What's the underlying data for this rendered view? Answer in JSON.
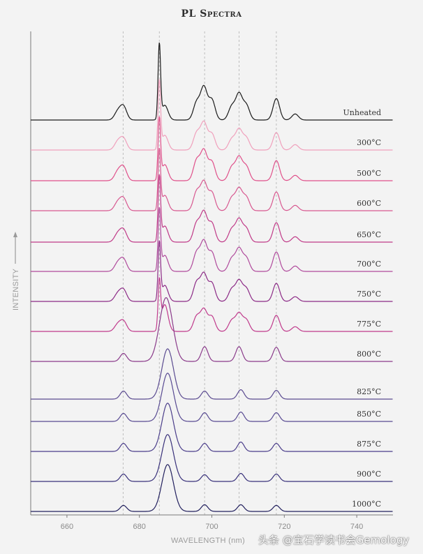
{
  "chart_data": {
    "type": "line",
    "title": "PL Spectra",
    "xlabel": "WAVELENGTH (nm)",
    "ylabel": "INTENSITY",
    "xlim": [
      650,
      750
    ],
    "xticks": [
      660,
      680,
      700,
      720,
      740
    ],
    "grid": "vertical dashed",
    "reference_lines": [
      675.5,
      685.5,
      698,
      707.5,
      717.8
    ],
    "series": [
      {
        "name": "Unheated",
        "color": "#1a1a1a",
        "peaks": [
          {
            "x": 674,
            "y": 12
          },
          {
            "x": 675.6,
            "y": 20
          },
          {
            "x": 685.5,
            "y": 110
          },
          {
            "x": 687,
            "y": 22
          },
          {
            "x": 695.8,
            "y": 26
          },
          {
            "x": 697.8,
            "y": 48
          },
          {
            "x": 700,
            "y": 30
          },
          {
            "x": 705.5,
            "y": 20
          },
          {
            "x": 707.5,
            "y": 38
          },
          {
            "x": 709.5,
            "y": 22
          },
          {
            "x": 717.8,
            "y": 32
          },
          {
            "x": 723,
            "y": 9
          }
        ]
      },
      {
        "name": "300°C",
        "color": "#f0a0bc",
        "peaks": [
          {
            "x": 674,
            "y": 12
          },
          {
            "x": 675.6,
            "y": 17
          },
          {
            "x": 685.5,
            "y": 100
          },
          {
            "x": 687,
            "y": 22
          },
          {
            "x": 695.8,
            "y": 25
          },
          {
            "x": 697.8,
            "y": 40
          },
          {
            "x": 700,
            "y": 24
          },
          {
            "x": 705.5,
            "y": 16
          },
          {
            "x": 707.5,
            "y": 30
          },
          {
            "x": 709.5,
            "y": 18
          },
          {
            "x": 717.8,
            "y": 26
          },
          {
            "x": 723,
            "y": 8
          }
        ]
      },
      {
        "name": "500°C",
        "color": "#e0508a",
        "peaks": [
          {
            "x": 674,
            "y": 13
          },
          {
            "x": 675.6,
            "y": 20
          },
          {
            "x": 685.5,
            "y": 90
          },
          {
            "x": 687,
            "y": 24
          },
          {
            "x": 695.8,
            "y": 30
          },
          {
            "x": 697.8,
            "y": 44
          },
          {
            "x": 700,
            "y": 28
          },
          {
            "x": 705.5,
            "y": 20
          },
          {
            "x": 707.5,
            "y": 34
          },
          {
            "x": 709.5,
            "y": 21
          },
          {
            "x": 717.8,
            "y": 30
          },
          {
            "x": 723,
            "y": 8
          }
        ]
      },
      {
        "name": "600°C",
        "color": "#d85890",
        "peaks": [
          {
            "x": 674,
            "y": 12
          },
          {
            "x": 675.6,
            "y": 18
          },
          {
            "x": 685.5,
            "y": 88
          },
          {
            "x": 687,
            "y": 23
          },
          {
            "x": 695.8,
            "y": 28
          },
          {
            "x": 697.8,
            "y": 42
          },
          {
            "x": 700,
            "y": 27
          },
          {
            "x": 705.5,
            "y": 19
          },
          {
            "x": 707.5,
            "y": 32
          },
          {
            "x": 709.5,
            "y": 20
          },
          {
            "x": 717.8,
            "y": 28
          },
          {
            "x": 723,
            "y": 8
          }
        ]
      },
      {
        "name": "650°C",
        "color": "#c03a88",
        "peaks": [
          {
            "x": 674,
            "y": 12
          },
          {
            "x": 675.6,
            "y": 18
          },
          {
            "x": 685.5,
            "y": 95
          },
          {
            "x": 687,
            "y": 24
          },
          {
            "x": 695.8,
            "y": 28
          },
          {
            "x": 697.8,
            "y": 44
          },
          {
            "x": 700,
            "y": 28
          },
          {
            "x": 705.5,
            "y": 19
          },
          {
            "x": 707.5,
            "y": 33
          },
          {
            "x": 709.5,
            "y": 20
          },
          {
            "x": 717.8,
            "y": 29
          },
          {
            "x": 723,
            "y": 8
          }
        ]
      },
      {
        "name": "700°C",
        "color": "#b04a9c",
        "peaks": [
          {
            "x": 674,
            "y": 12
          },
          {
            "x": 675.6,
            "y": 18
          },
          {
            "x": 685.5,
            "y": 90
          },
          {
            "x": 687,
            "y": 24
          },
          {
            "x": 695.8,
            "y": 28
          },
          {
            "x": 697.8,
            "y": 44
          },
          {
            "x": 700,
            "y": 28
          },
          {
            "x": 705.5,
            "y": 19
          },
          {
            "x": 707.5,
            "y": 33
          },
          {
            "x": 709.5,
            "y": 20
          },
          {
            "x": 717.8,
            "y": 29
          },
          {
            "x": 723,
            "y": 8
          }
        ]
      },
      {
        "name": "750°C",
        "color": "#8c2a86",
        "peaks": [
          {
            "x": 674,
            "y": 11
          },
          {
            "x": 675.6,
            "y": 17
          },
          {
            "x": 685.5,
            "y": 85
          },
          {
            "x": 687,
            "y": 24
          },
          {
            "x": 695.8,
            "y": 28
          },
          {
            "x": 697.8,
            "y": 40
          },
          {
            "x": 700,
            "y": 27
          },
          {
            "x": 705.5,
            "y": 18
          },
          {
            "x": 707.5,
            "y": 30
          },
          {
            "x": 709.5,
            "y": 19
          },
          {
            "x": 717.8,
            "y": 27
          },
          {
            "x": 723,
            "y": 7
          }
        ]
      },
      {
        "name": "775°C",
        "color": "#c03a8c",
        "peaks": [
          {
            "x": 674,
            "y": 10
          },
          {
            "x": 675.6,
            "y": 15
          },
          {
            "x": 685.5,
            "y": 70
          },
          {
            "x": 687,
            "y": 40
          },
          {
            "x": 695.8,
            "y": 22
          },
          {
            "x": 697.8,
            "y": 32
          },
          {
            "x": 700,
            "y": 22
          },
          {
            "x": 705.5,
            "y": 16
          },
          {
            "x": 707.5,
            "y": 26
          },
          {
            "x": 709.5,
            "y": 17
          },
          {
            "x": 717.8,
            "y": 24
          },
          {
            "x": 723,
            "y": 7
          }
        ]
      },
      {
        "name": "800°C",
        "color": "#8a3a8a",
        "peaks": [
          {
            "x": 675.6,
            "y": 12
          },
          {
            "x": 686.5,
            "y": 46
          },
          {
            "x": 688,
            "y": 60
          },
          {
            "x": 698,
            "y": 22
          },
          {
            "x": 707.5,
            "y": 22
          },
          {
            "x": 717.8,
            "y": 21
          }
        ]
      },
      {
        "name": "825°C",
        "color": "#5a4a90",
        "peaks": [
          {
            "x": 675.6,
            "y": 12
          },
          {
            "x": 687.8,
            "y": 75
          },
          {
            "x": 698,
            "y": 12
          },
          {
            "x": 708,
            "y": 14
          },
          {
            "x": 717.8,
            "y": 13
          }
        ]
      },
      {
        "name": "850°C",
        "color": "#584a92",
        "peaks": [
          {
            "x": 675.6,
            "y": 12
          },
          {
            "x": 687.8,
            "y": 72
          },
          {
            "x": 698,
            "y": 13
          },
          {
            "x": 708,
            "y": 14
          },
          {
            "x": 717.8,
            "y": 13
          }
        ]
      },
      {
        "name": "875°C",
        "color": "#4a3d8a",
        "peaks": [
          {
            "x": 675.6,
            "y": 12
          },
          {
            "x": 687.8,
            "y": 72
          },
          {
            "x": 698,
            "y": 12
          },
          {
            "x": 708,
            "y": 14
          },
          {
            "x": 717.8,
            "y": 12
          }
        ]
      },
      {
        "name": "900°C",
        "color": "#38307a",
        "peaks": [
          {
            "x": 675.6,
            "y": 11
          },
          {
            "x": 687.8,
            "y": 70
          },
          {
            "x": 698,
            "y": 10
          },
          {
            "x": 708,
            "y": 12
          },
          {
            "x": 717.8,
            "y": 11
          }
        ]
      },
      {
        "name": "1000°C",
        "color": "#22205e",
        "peaks": [
          {
            "x": 675.6,
            "y": 9
          },
          {
            "x": 687.8,
            "y": 70
          },
          {
            "x": 698,
            "y": 10
          },
          {
            "x": 708,
            "y": 10
          },
          {
            "x": 717.8,
            "y": 9
          }
        ]
      }
    ]
  },
  "watermark": "头条 @宝石学读书会Gemology"
}
